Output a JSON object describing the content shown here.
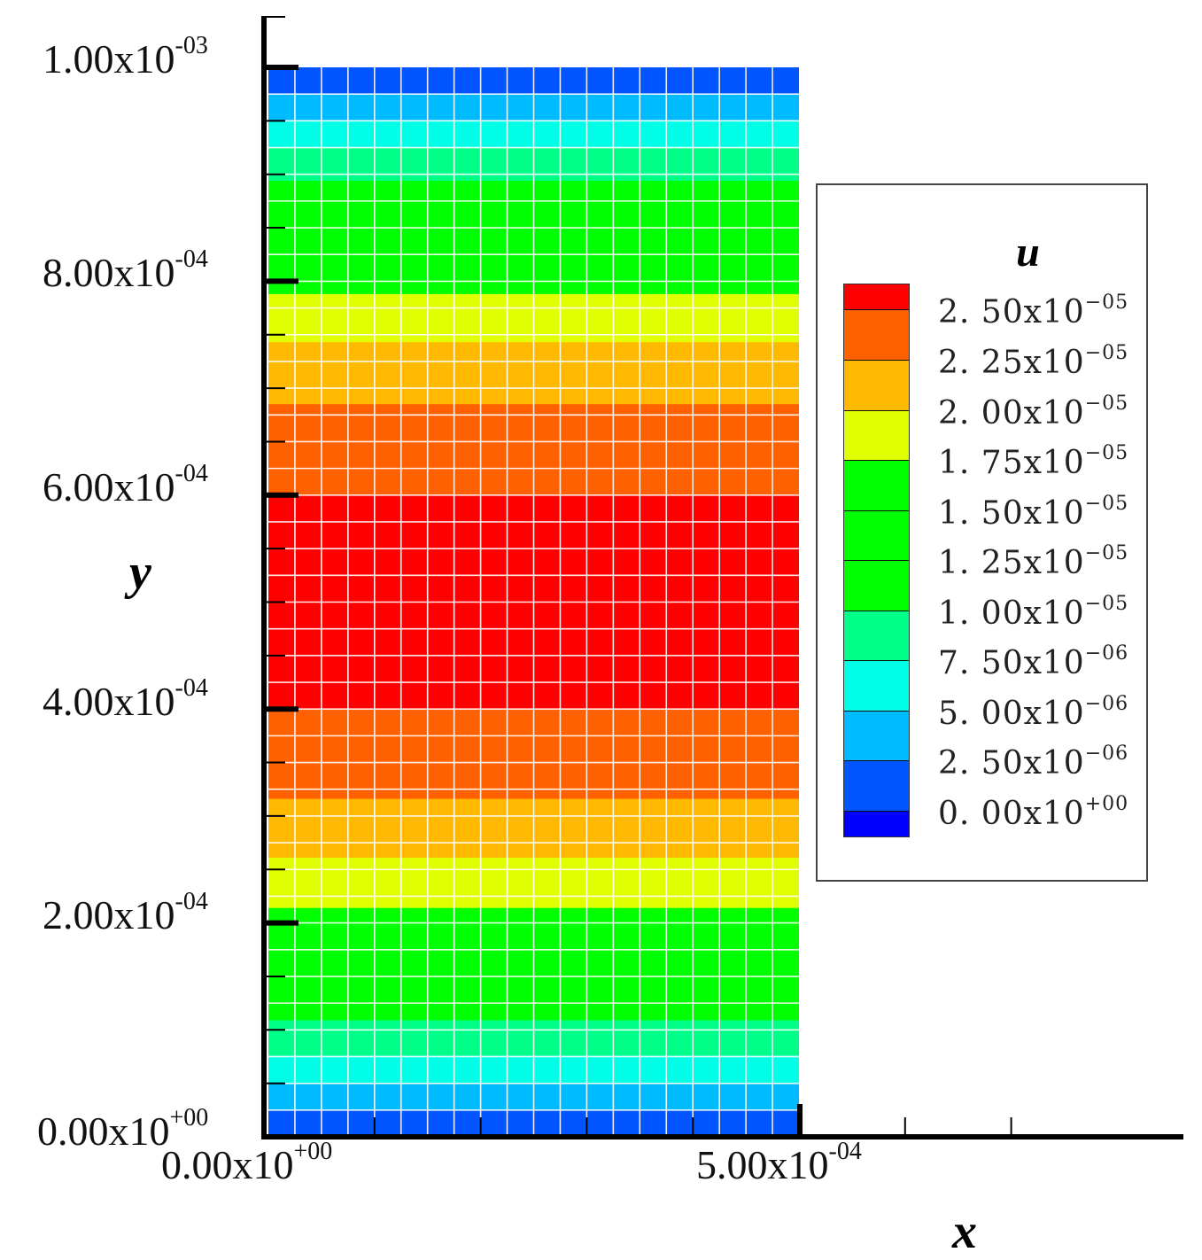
{
  "chart_data": {
    "type": "heatmap",
    "title": "",
    "variable": "u",
    "xlabel": "x",
    "ylabel": "y",
    "xlim": [
      0,
      0.0005
    ],
    "ylim": [
      0,
      0.001
    ],
    "x_axis_extends_to": 0.00085,
    "grid": true,
    "grid_cells": {
      "columns": 20,
      "rows": 40
    },
    "x_ticks": [
      {
        "value": 0.0,
        "mantissa": "0.00",
        "exponent": "+00"
      },
      {
        "value": 0.0005,
        "mantissa": "5.00",
        "exponent": "-04"
      }
    ],
    "y_ticks": [
      {
        "value": 0.0,
        "mantissa": "0.00",
        "exponent": "+00"
      },
      {
        "value": 0.0002,
        "mantissa": "2.00",
        "exponent": "-04"
      },
      {
        "value": 0.0004,
        "mantissa": "4.00",
        "exponent": "-04"
      },
      {
        "value": 0.0006,
        "mantissa": "6.00",
        "exponent": "-04"
      },
      {
        "value": 0.0008,
        "mantissa": "8.00",
        "exponent": "-04"
      },
      {
        "value": 0.001,
        "mantissa": "1.00",
        "exponent": "-03"
      }
    ],
    "legend": {
      "title": "u",
      "position": "right",
      "levels": [
        {
          "mantissa": "2. 50",
          "exponent": "−05",
          "value": 2.5e-05,
          "color": "#ff0000"
        },
        {
          "mantissa": "2. 25",
          "exponent": "−05",
          "value": 2.25e-05,
          "color": "#ff6000"
        },
        {
          "mantissa": "2. 00",
          "exponent": "−05",
          "value": 2e-05,
          "color": "#ffb900"
        },
        {
          "mantissa": "1. 75",
          "exponent": "−05",
          "value": 1.75e-05,
          "color": "#e0ff00"
        },
        {
          "mantissa": "1. 50",
          "exponent": "−05",
          "value": 1.5e-05,
          "color": "#00ff00"
        },
        {
          "mantissa": "1. 25",
          "exponent": "−05",
          "value": 1.25e-05,
          "color": "#00ff00"
        },
        {
          "mantissa": "1. 00",
          "exponent": "−05",
          "value": 1e-05,
          "color": "#00ff00"
        },
        {
          "mantissa": "7. 50",
          "exponent": "−06",
          "value": 7.5e-06,
          "color": "#00ff88"
        },
        {
          "mantissa": "5. 00",
          "exponent": "−06",
          "value": 5e-06,
          "color": "#00ffe6"
        },
        {
          "mantissa": "2. 50",
          "exponent": "−06",
          "value": 2.5e-06,
          "color": "#00bbff"
        },
        {
          "mantissa": "0. 00",
          "exponent": "+00",
          "value": 0.0,
          "color": "#0055ff"
        }
      ],
      "bottom_swatch_color": "#0000ff"
    },
    "bands_y_fraction_top_to_bottom": [
      {
        "from": 1.0,
        "to": 0.975,
        "color": "#0055ff"
      },
      {
        "from": 0.975,
        "to": 0.95,
        "color": "#00bbff"
      },
      {
        "from": 0.95,
        "to": 0.925,
        "color": "#00ffe6"
      },
      {
        "from": 0.925,
        "to": 0.894,
        "color": "#00ff88"
      },
      {
        "from": 0.894,
        "to": 0.788,
        "color": "#00ff00"
      },
      {
        "from": 0.788,
        "to": 0.743,
        "color": "#e0ff00"
      },
      {
        "from": 0.743,
        "to": 0.685,
        "color": "#ffb900"
      },
      {
        "from": 0.685,
        "to": 0.6,
        "color": "#ff6000"
      },
      {
        "from": 0.6,
        "to": 0.4,
        "color": "#ff0000"
      },
      {
        "from": 0.4,
        "to": 0.316,
        "color": "#ff6000"
      },
      {
        "from": 0.316,
        "to": 0.261,
        "color": "#ffb900"
      },
      {
        "from": 0.261,
        "to": 0.214,
        "color": "#e0ff00"
      },
      {
        "from": 0.214,
        "to": 0.109,
        "color": "#00ff00"
      },
      {
        "from": 0.109,
        "to": 0.076,
        "color": "#00ff88"
      },
      {
        "from": 0.076,
        "to": 0.05,
        "color": "#00ffe6"
      },
      {
        "from": 0.05,
        "to": 0.025,
        "color": "#00bbff"
      },
      {
        "from": 0.025,
        "to": 0.0,
        "color": "#0055ff"
      }
    ]
  },
  "axes": {
    "x_title": "x",
    "y_title": "y",
    "x_labels": [
      {
        "mantissa": "0.00x10",
        "exponent": "+00"
      },
      {
        "mantissa": "5.00x10",
        "exponent": "-04"
      }
    ],
    "y_labels": [
      {
        "mantissa": "1.00x10",
        "exponent": "-03"
      },
      {
        "mantissa": "8.00x10",
        "exponent": "-04"
      },
      {
        "mantissa": "6.00x10",
        "exponent": "-04"
      },
      {
        "mantissa": "4.00x10",
        "exponent": "-04"
      },
      {
        "mantissa": "2.00x10",
        "exponent": "-04"
      },
      {
        "mantissa": "0.00x10",
        "exponent": "+00"
      }
    ]
  },
  "legend_labels": [
    {
      "mantissa": "2. 50x10",
      "exponent": "−05"
    },
    {
      "mantissa": "2. 25x10",
      "exponent": "−05"
    },
    {
      "mantissa": "2. 00x10",
      "exponent": "−05"
    },
    {
      "mantissa": "1. 75x10",
      "exponent": "−05"
    },
    {
      "mantissa": "1. 50x10",
      "exponent": "−05"
    },
    {
      "mantissa": "1. 25x10",
      "exponent": "−05"
    },
    {
      "mantissa": "1. 00x10",
      "exponent": "−05"
    },
    {
      "mantissa": "7. 50x10",
      "exponent": "−06"
    },
    {
      "mantissa": "5. 00x10",
      "exponent": "−06"
    },
    {
      "mantissa": "2. 50x10",
      "exponent": "−06"
    },
    {
      "mantissa": "0. 00x10",
      "exponent": "+00"
    }
  ],
  "legend_title": "u",
  "legend_swatches": [
    "#ff0000",
    "#ff6000",
    "#ffb900",
    "#e0ff00",
    "#00ff00",
    "#00ff00",
    "#00ff00",
    "#00ff88",
    "#00ffe6",
    "#00bbff",
    "#0055ff",
    "#0000ff"
  ]
}
